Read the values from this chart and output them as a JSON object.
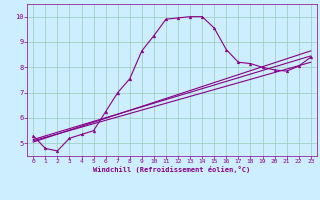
{
  "xlabel": "Windchill (Refroidissement éolien,°C)",
  "bg_color": "#cceeff",
  "line_color": "#880088",
  "grid_color": "#99ccbb",
  "xlim": [
    -0.5,
    23.5
  ],
  "ylim": [
    4.5,
    10.5
  ],
  "xticks": [
    0,
    1,
    2,
    3,
    4,
    5,
    6,
    7,
    8,
    9,
    10,
    11,
    12,
    13,
    14,
    15,
    16,
    17,
    18,
    19,
    20,
    21,
    22,
    23
  ],
  "yticks": [
    5,
    6,
    7,
    8,
    9,
    10
  ],
  "main_x": [
    0,
    1,
    2,
    3,
    4,
    5,
    6,
    7,
    8,
    9,
    10,
    11,
    12,
    13,
    14,
    15,
    16,
    17,
    18,
    19,
    20,
    21,
    22,
    23
  ],
  "main_y": [
    5.3,
    4.8,
    4.7,
    5.2,
    5.35,
    5.5,
    6.25,
    7.0,
    7.55,
    8.65,
    9.25,
    9.9,
    9.95,
    10.0,
    10.0,
    9.55,
    8.7,
    8.2,
    8.15,
    8.0,
    7.9,
    7.85,
    8.05,
    8.4
  ],
  "line1_x": [
    0,
    23
  ],
  "line1_y": [
    5.15,
    8.45
  ],
  "line2_x": [
    0,
    23
  ],
  "line2_y": [
    5.1,
    8.2
  ],
  "line3_x": [
    0,
    23
  ],
  "line3_y": [
    5.05,
    8.65
  ]
}
